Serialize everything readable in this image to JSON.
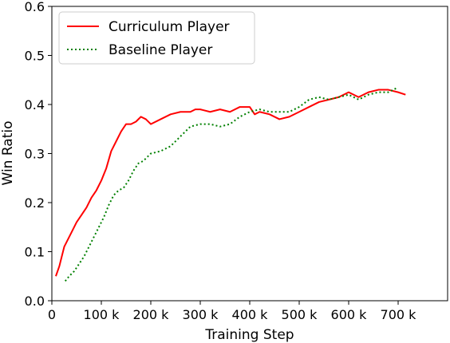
{
  "chart_data": {
    "type": "line",
    "xlabel": "Training Step",
    "ylabel": "Win Ratio",
    "xlim": [
      0,
      800000
    ],
    "ylim": [
      0,
      0.6
    ],
    "xticks": [
      0,
      100000,
      200000,
      300000,
      400000,
      500000,
      600000,
      700000
    ],
    "xtick_labels": [
      "0",
      "100 k",
      "200 k",
      "300 k",
      "400 k",
      "500 k",
      "600 k",
      "700 k"
    ],
    "yticks": [
      0.0,
      0.1,
      0.2,
      0.3,
      0.4,
      0.5,
      0.6
    ],
    "ytick_labels": [
      "0.0",
      "0.1",
      "0.2",
      "0.3",
      "0.4",
      "0.5",
      "0.6"
    ],
    "grid": false,
    "legend_position": "top-left",
    "series": [
      {
        "name": "Curriculum Player",
        "color": "#ff0000",
        "style": "solid",
        "x": [
          8000,
          15000,
          20000,
          25000,
          30000,
          40000,
          50000,
          60000,
          70000,
          80000,
          90000,
          100000,
          110000,
          120000,
          130000,
          140000,
          150000,
          160000,
          170000,
          180000,
          190000,
          200000,
          220000,
          240000,
          260000,
          280000,
          290000,
          300000,
          320000,
          340000,
          360000,
          380000,
          400000,
          410000,
          420000,
          440000,
          460000,
          480000,
          500000,
          520000,
          540000,
          560000,
          580000,
          600000,
          620000,
          640000,
          660000,
          680000,
          700000,
          715000
        ],
        "y": [
          0.05,
          0.07,
          0.09,
          0.11,
          0.12,
          0.14,
          0.16,
          0.175,
          0.19,
          0.21,
          0.225,
          0.245,
          0.27,
          0.305,
          0.325,
          0.345,
          0.36,
          0.36,
          0.365,
          0.375,
          0.37,
          0.36,
          0.37,
          0.38,
          0.385,
          0.385,
          0.39,
          0.39,
          0.385,
          0.39,
          0.385,
          0.395,
          0.395,
          0.38,
          0.385,
          0.38,
          0.37,
          0.375,
          0.385,
          0.395,
          0.405,
          0.41,
          0.415,
          0.425,
          0.415,
          0.425,
          0.43,
          0.43,
          0.425,
          0.42
        ]
      },
      {
        "name": "Baseline Player",
        "color": "#008000",
        "style": "dotted",
        "x": [
          27000,
          35000,
          45000,
          55000,
          65000,
          75000,
          85000,
          95000,
          105000,
          115000,
          125000,
          135000,
          145000,
          155000,
          165000,
          175000,
          185000,
          200000,
          220000,
          240000,
          260000,
          280000,
          300000,
          320000,
          340000,
          360000,
          380000,
          400000,
          420000,
          440000,
          460000,
          480000,
          500000,
          520000,
          540000,
          560000,
          580000,
          600000,
          620000,
          640000,
          660000,
          680000,
          700000
        ],
        "y": [
          0.04,
          0.05,
          0.06,
          0.075,
          0.09,
          0.11,
          0.13,
          0.15,
          0.17,
          0.195,
          0.215,
          0.225,
          0.23,
          0.245,
          0.265,
          0.28,
          0.285,
          0.3,
          0.305,
          0.315,
          0.335,
          0.355,
          0.36,
          0.36,
          0.355,
          0.36,
          0.375,
          0.385,
          0.39,
          0.385,
          0.385,
          0.385,
          0.395,
          0.41,
          0.415,
          0.41,
          0.415,
          0.42,
          0.41,
          0.42,
          0.425,
          0.425,
          0.435
        ]
      }
    ]
  }
}
